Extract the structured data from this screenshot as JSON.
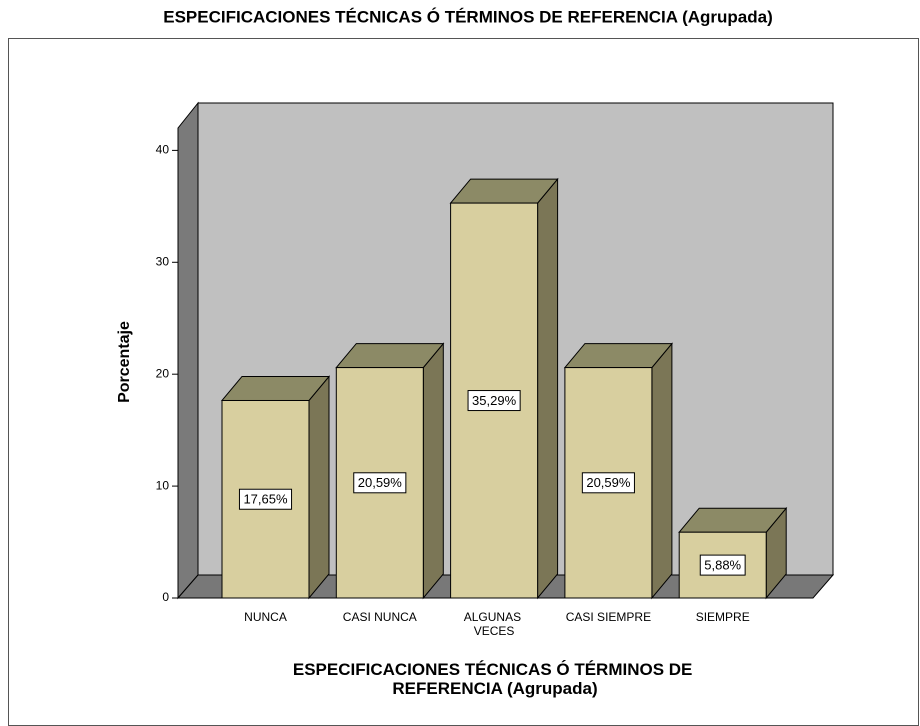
{
  "chart_data": {
    "type": "bar3d",
    "title": "ESPECIFICACIONES TÉCNICAS Ó TÉRMINOS DE REFERENCIA (Agrupada)",
    "x_label": "ESPECIFICACIONES TÉCNICAS Ó TÉRMINOS DE REFERENCIA (Agrupada)",
    "y_label": "Porcentaje",
    "categories": [
      "NUNCA",
      "CASI NUNCA",
      "ALGUNAS VECES",
      "CASI SIEMPRE",
      "SIEMPRE"
    ],
    "values": [
      17.65,
      20.59,
      35.29,
      20.59,
      5.88
    ],
    "value_labels": [
      "17,65%",
      "20,59%",
      "35,29%",
      "20,59%",
      "5,88%"
    ],
    "color": "#d8cf9f",
    "ylim": [
      0,
      42
    ],
    "yticks": [
      0,
      10,
      20,
      30,
      40
    ]
  }
}
